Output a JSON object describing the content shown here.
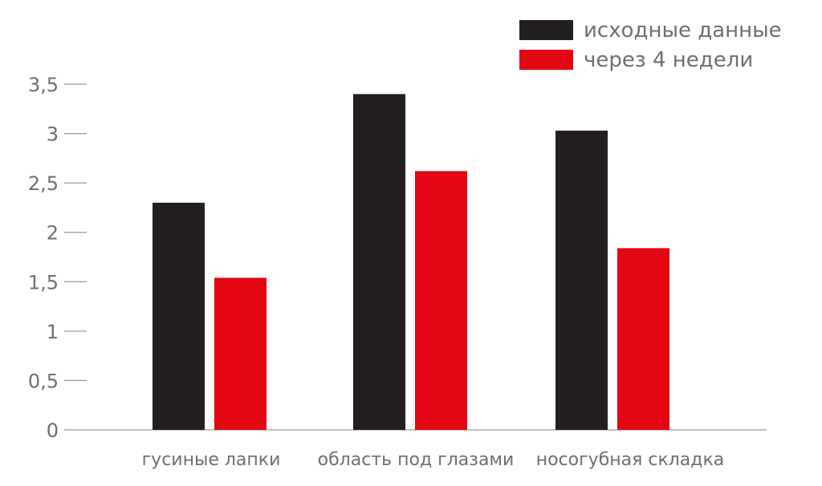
{
  "chart_data": {
    "type": "bar",
    "categories": [
      "гусиные лапки",
      "область под глазами",
      "носогубная складка"
    ],
    "series": [
      {
        "name": "исходные данные",
        "color": "#231f20",
        "values": [
          2.3,
          3.4,
          3.03
        ]
      },
      {
        "name": "через 4 недели",
        "color": "#e30613",
        "values": [
          1.54,
          2.62,
          1.84
        ]
      }
    ],
    "yticks": [
      "0",
      "0,5",
      "1",
      "1,5",
      "2",
      "2,5",
      "3",
      "3,5"
    ],
    "ylim": [
      0,
      3.5
    ],
    "title": "",
    "xlabel": "",
    "ylabel": "",
    "grid": false,
    "legend_position": "top-right"
  }
}
